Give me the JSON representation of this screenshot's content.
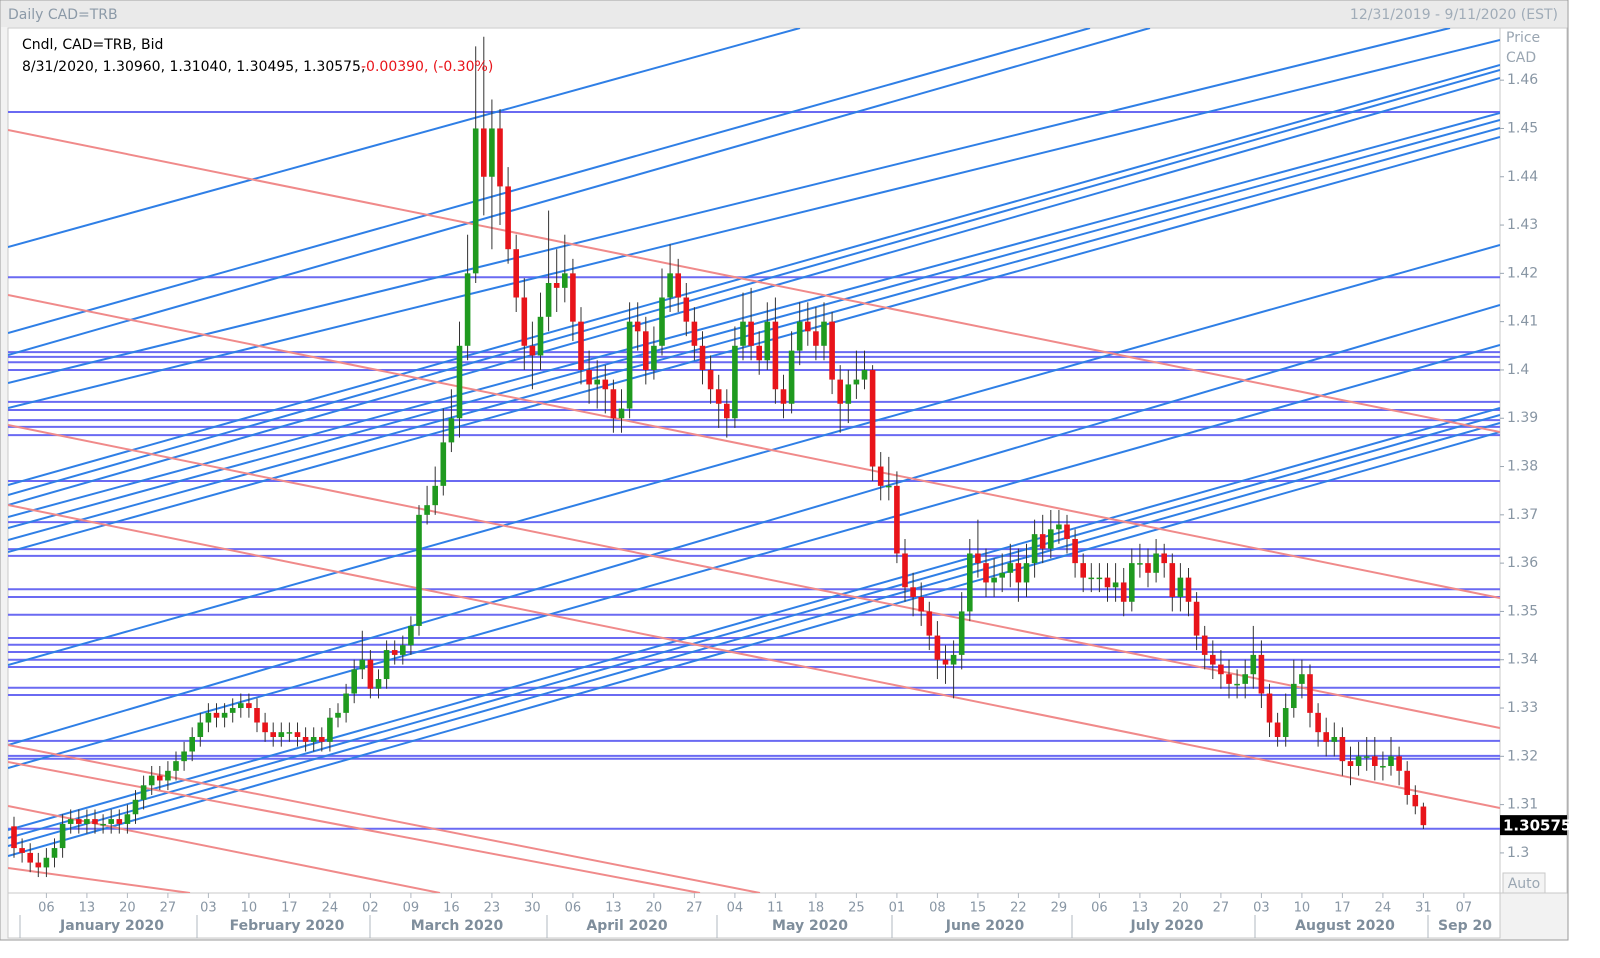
{
  "chart_data": {
    "type": "candlestick",
    "title": "Daily CAD=TRB",
    "date_range": "12/31/2019 - 9/11/2020 (EST)",
    "legend": "Cndl, CAD=TRB, Bid",
    "info": "8/31/2020, 1.30960, 1.31040, 1.30495, 1.30575,",
    "change": "-0.00390, (-0.30%)",
    "y_label": "Price",
    "y_unit": "CAD",
    "button": "Auto",
    "up_color": "#1f9a1f",
    "down_color": "#e8141a",
    "level_color": "#6a6af2",
    "months": [
      "January 2020",
      "February 2020",
      "March 2020",
      "April 2020",
      "May 2020",
      "June 2020",
      "July 2020",
      "August 2020",
      "Sep 20"
    ],
    "ylim": [
      1.2917,
      1.4708
    ],
    "yticks": [
      1.3,
      1.31,
      1.32,
      1.33,
      1.34,
      1.35,
      1.36,
      1.37,
      1.38,
      1.39,
      1.4,
      1.41,
      1.42,
      1.43,
      1.44,
      1.45,
      1.46
    ],
    "levels": [
      1.4534,
      1.4192,
      1.4037,
      1.4027,
      1.4016,
      1.4,
      1.3934,
      1.3917,
      1.3896,
      1.3882,
      1.3865,
      1.377,
      1.3685,
      1.3629,
      1.3615,
      1.3546,
      1.353,
      1.3493,
      1.3445,
      1.3431,
      1.3416,
      1.34,
      1.3385,
      1.3342,
      1.3327,
      1.3232,
      1.3201,
      1.3195,
      1.305
    ],
    "categories": [
      null,
      null,
      null,
      null,
      "06",
      null,
      null,
      null,
      null,
      "13",
      null,
      null,
      null,
      null,
      "20",
      null,
      null,
      null,
      null,
      "27",
      null,
      null,
      null,
      null,
      "03",
      null,
      null,
      null,
      null,
      "10",
      null,
      null,
      null,
      null,
      "17",
      null,
      null,
      null,
      null,
      "24",
      null,
      null,
      null,
      null,
      "02",
      null,
      null,
      null,
      null,
      "09",
      null,
      null,
      null,
      null,
      "16",
      null,
      null,
      null,
      null,
      "23",
      null,
      null,
      null,
      null,
      "30",
      null,
      null,
      null,
      null,
      "06",
      null,
      null,
      null,
      null,
      "13",
      null,
      null,
      null,
      null,
      "20",
      null,
      null,
      null,
      null,
      "27",
      null,
      null,
      null,
      null,
      "04",
      null,
      null,
      null,
      null,
      "11",
      null,
      null,
      null,
      null,
      "18",
      null,
      null,
      null,
      null,
      "25",
      null,
      null,
      null,
      null,
      "01",
      null,
      null,
      null,
      null,
      "08",
      null,
      null,
      null,
      null,
      "15",
      null,
      null,
      null,
      null,
      "22",
      null,
      null,
      null,
      null,
      "29",
      null,
      null,
      null,
      null,
      "06",
      null,
      null,
      null,
      null,
      "13",
      null,
      null,
      null,
      null,
      "20",
      null,
      null,
      null,
      null,
      "27",
      null,
      null,
      null,
      null,
      "03",
      null,
      null,
      null,
      null,
      "10",
      null,
      null,
      null,
      null,
      "17",
      null,
      null,
      null,
      null,
      "24",
      null,
      null,
      null,
      null,
      "31",
      null,
      null,
      null,
      null,
      "07",
      null,
      null,
      null,
      null
    ],
    "open": [
      1.3055,
      1.301,
      1.3,
      1.298,
      1.297,
      1.299,
      1.301,
      1.306,
      1.307,
      1.306,
      1.307,
      1.306,
      1.306,
      1.307,
      1.306,
      1.308,
      1.311,
      1.314,
      1.316,
      1.315,
      1.317,
      1.319,
      1.321,
      1.324,
      1.327,
      1.329,
      1.328,
      1.329,
      1.33,
      1.331,
      1.33,
      1.327,
      1.325,
      1.324,
      1.325,
      1.325,
      1.324,
      1.323,
      1.324,
      1.323,
      1.328,
      1.329,
      1.333,
      1.338,
      1.34,
      1.334,
      1.336,
      1.342,
      1.341,
      1.343,
      1.347,
      1.37,
      1.372,
      1.376,
      1.385,
      1.39,
      1.405,
      1.42,
      1.45,
      1.44,
      1.45,
      1.438,
      1.425,
      1.415,
      1.405,
      1.403,
      1.411,
      1.418,
      1.417,
      1.42,
      1.41,
      1.4,
      1.397,
      1.398,
      1.396,
      1.39,
      1.392,
      1.41,
      1.408,
      1.4,
      1.405,
      1.415,
      1.42,
      1.415,
      1.41,
      1.405,
      1.4,
      1.396,
      1.393,
      1.39,
      1.405,
      1.41,
      1.405,
      1.402,
      1.41,
      1.396,
      1.393,
      1.404,
      1.41,
      1.408,
      1.405,
      1.41,
      1.398,
      1.393,
      1.397,
      1.398,
      1.4,
      1.38,
      1.376,
      1.376,
      1.362,
      1.355,
      1.353,
      1.35,
      1.345,
      1.34,
      1.339,
      1.341,
      1.35,
      1.362,
      1.36,
      1.356,
      1.357,
      1.358,
      1.36,
      1.356,
      1.36,
      1.366,
      1.363,
      1.367,
      1.368,
      1.365,
      1.36,
      1.357,
      1.357,
      1.357,
      1.355,
      1.356,
      1.352,
      1.36,
      1.36,
      1.358,
      1.362,
      1.36,
      1.353,
      1.357,
      1.352,
      1.345,
      1.341,
      1.339,
      1.337,
      1.335,
      1.335,
      1.337,
      1.341,
      1.333,
      1.327,
      1.324,
      1.33,
      1.335,
      1.337,
      1.329,
      1.325,
      1.323,
      1.324,
      1.319,
      1.318,
      1.32,
      1.32,
      1.318,
      1.318,
      1.32,
      1.317,
      1.312,
      1.3096,
      null,
      null,
      null,
      null,
      null,
      null,
      null,
      null,
      null
    ],
    "high": [
      1.3075,
      1.303,
      1.302,
      1.3,
      1.301,
      1.303,
      1.308,
      1.309,
      1.309,
      1.309,
      1.309,
      1.308,
      1.309,
      1.309,
      1.31,
      1.313,
      1.316,
      1.318,
      1.318,
      1.319,
      1.321,
      1.323,
      1.326,
      1.329,
      1.331,
      1.331,
      1.331,
      1.332,
      1.333,
      1.333,
      1.332,
      1.329,
      1.327,
      1.327,
      1.327,
      1.327,
      1.326,
      1.326,
      1.326,
      1.33,
      1.331,
      1.335,
      1.34,
      1.346,
      1.342,
      1.338,
      1.344,
      1.344,
      1.345,
      1.349,
      1.372,
      1.376,
      1.38,
      1.392,
      1.396,
      1.41,
      1.428,
      1.467,
      1.469,
      1.456,
      1.454,
      1.442,
      1.428,
      1.419,
      1.41,
      1.416,
      1.433,
      1.425,
      1.428,
      1.423,
      1.413,
      1.404,
      1.402,
      1.401,
      1.398,
      1.396,
      1.414,
      1.414,
      1.411,
      1.409,
      1.421,
      1.426,
      1.423,
      1.418,
      1.413,
      1.408,
      1.403,
      1.399,
      1.396,
      1.409,
      1.416,
      1.417,
      1.408,
      1.414,
      1.415,
      1.399,
      1.408,
      1.414,
      1.414,
      1.413,
      1.414,
      1.412,
      1.401,
      1.4,
      1.404,
      1.404,
      1.401,
      1.383,
      1.382,
      1.379,
      1.365,
      1.358,
      1.356,
      1.352,
      1.348,
      1.343,
      1.344,
      1.354,
      1.365,
      1.369,
      1.363,
      1.361,
      1.362,
      1.364,
      1.363,
      1.364,
      1.369,
      1.37,
      1.371,
      1.371,
      1.37,
      1.367,
      1.362,
      1.36,
      1.36,
      1.36,
      1.36,
      1.359,
      1.363,
      1.364,
      1.363,
      1.365,
      1.364,
      1.362,
      1.36,
      1.359,
      1.354,
      1.347,
      1.344,
      1.342,
      1.34,
      1.338,
      1.34,
      1.347,
      1.344,
      1.335,
      1.329,
      1.333,
      1.34,
      1.34,
      1.339,
      1.331,
      1.328,
      1.327,
      1.326,
      1.322,
      1.323,
      1.324,
      1.324,
      1.321,
      1.324,
      1.322,
      1.319,
      1.314,
      1.3104,
      null,
      null,
      null,
      null,
      null,
      null,
      null,
      null,
      null
    ],
    "low": [
      1.299,
      1.298,
      1.296,
      1.295,
      1.295,
      1.297,
      1.299,
      1.304,
      1.304,
      1.304,
      1.304,
      1.304,
      1.304,
      1.304,
      1.304,
      1.306,
      1.309,
      1.312,
      1.313,
      1.313,
      1.315,
      1.317,
      1.319,
      1.322,
      1.325,
      1.326,
      1.326,
      1.327,
      1.328,
      1.328,
      1.325,
      1.323,
      1.322,
      1.322,
      1.323,
      1.322,
      1.321,
      1.321,
      1.321,
      1.321,
      1.326,
      1.327,
      1.331,
      1.336,
      1.332,
      1.332,
      1.334,
      1.339,
      1.339,
      1.341,
      1.345,
      1.368,
      1.37,
      1.374,
      1.383,
      1.386,
      1.402,
      1.418,
      1.432,
      1.425,
      1.43,
      1.422,
      1.412,
      1.4,
      1.396,
      1.4,
      1.408,
      1.412,
      1.414,
      1.406,
      1.397,
      1.393,
      1.392,
      1.391,
      1.387,
      1.387,
      1.39,
      1.404,
      1.397,
      1.398,
      1.403,
      1.412,
      1.412,
      1.407,
      1.402,
      1.397,
      1.393,
      1.388,
      1.386,
      1.388,
      1.402,
      1.402,
      1.399,
      1.4,
      1.393,
      1.39,
      1.391,
      1.401,
      1.405,
      1.402,
      1.402,
      1.395,
      1.387,
      1.389,
      1.394,
      1.396,
      1.377,
      1.373,
      1.373,
      1.36,
      1.352,
      1.349,
      1.347,
      1.342,
      1.336,
      1.335,
      1.332,
      1.338,
      1.348,
      1.357,
      1.353,
      1.353,
      1.354,
      1.355,
      1.352,
      1.353,
      1.357,
      1.36,
      1.361,
      1.364,
      1.362,
      1.357,
      1.354,
      1.354,
      1.354,
      1.352,
      1.352,
      1.349,
      1.35,
      1.357,
      1.355,
      1.356,
      1.357,
      1.35,
      1.35,
      1.349,
      1.342,
      1.338,
      1.336,
      1.334,
      1.332,
      1.332,
      1.332,
      1.334,
      1.33,
      1.324,
      1.322,
      1.322,
      1.328,
      1.332,
      1.326,
      1.322,
      1.32,
      1.32,
      1.316,
      1.314,
      1.316,
      1.317,
      1.315,
      1.315,
      1.316,
      1.314,
      1.31,
      1.308,
      1.30495,
      null,
      null,
      null,
      null,
      null,
      null,
      null,
      null,
      null
    ],
    "close": [
      1.301,
      1.3,
      1.298,
      1.297,
      1.299,
      1.301,
      1.306,
      1.307,
      1.306,
      1.307,
      1.306,
      1.306,
      1.307,
      1.306,
      1.308,
      1.311,
      1.314,
      1.316,
      1.315,
      1.317,
      1.319,
      1.321,
      1.324,
      1.327,
      1.329,
      1.328,
      1.329,
      1.33,
      1.331,
      1.33,
      1.327,
      1.325,
      1.324,
      1.325,
      1.325,
      1.324,
      1.323,
      1.324,
      1.323,
      1.328,
      1.329,
      1.333,
      1.338,
      1.34,
      1.334,
      1.336,
      1.342,
      1.341,
      1.343,
      1.347,
      1.37,
      1.372,
      1.376,
      1.385,
      1.39,
      1.405,
      1.42,
      1.45,
      1.44,
      1.45,
      1.438,
      1.425,
      1.415,
      1.405,
      1.403,
      1.411,
      1.418,
      1.417,
      1.42,
      1.41,
      1.4,
      1.397,
      1.398,
      1.396,
      1.39,
      1.392,
      1.41,
      1.408,
      1.4,
      1.405,
      1.415,
      1.42,
      1.415,
      1.41,
      1.405,
      1.4,
      1.396,
      1.393,
      1.39,
      1.405,
      1.41,
      1.405,
      1.402,
      1.41,
      1.396,
      1.393,
      1.404,
      1.41,
      1.408,
      1.405,
      1.41,
      1.398,
      1.393,
      1.397,
      1.398,
      1.4,
      1.38,
      1.376,
      1.376,
      1.362,
      1.355,
      1.353,
      1.35,
      1.345,
      1.34,
      1.339,
      1.341,
      1.35,
      1.362,
      1.36,
      1.356,
      1.357,
      1.358,
      1.36,
      1.356,
      1.36,
      1.366,
      1.363,
      1.367,
      1.368,
      1.365,
      1.36,
      1.357,
      1.357,
      1.357,
      1.355,
      1.356,
      1.352,
      1.36,
      1.36,
      1.358,
      1.362,
      1.36,
      1.353,
      1.357,
      1.352,
      1.345,
      1.341,
      1.339,
      1.337,
      1.335,
      1.335,
      1.337,
      1.341,
      1.333,
      1.327,
      1.324,
      1.33,
      1.335,
      1.337,
      1.329,
      1.325,
      1.323,
      1.324,
      1.319,
      1.318,
      1.32,
      1.32,
      1.318,
      1.318,
      1.32,
      1.317,
      1.312,
      1.30965,
      1.30575,
      null,
      null,
      null,
      null,
      null,
      null,
      null,
      null,
      null
    ]
  }
}
